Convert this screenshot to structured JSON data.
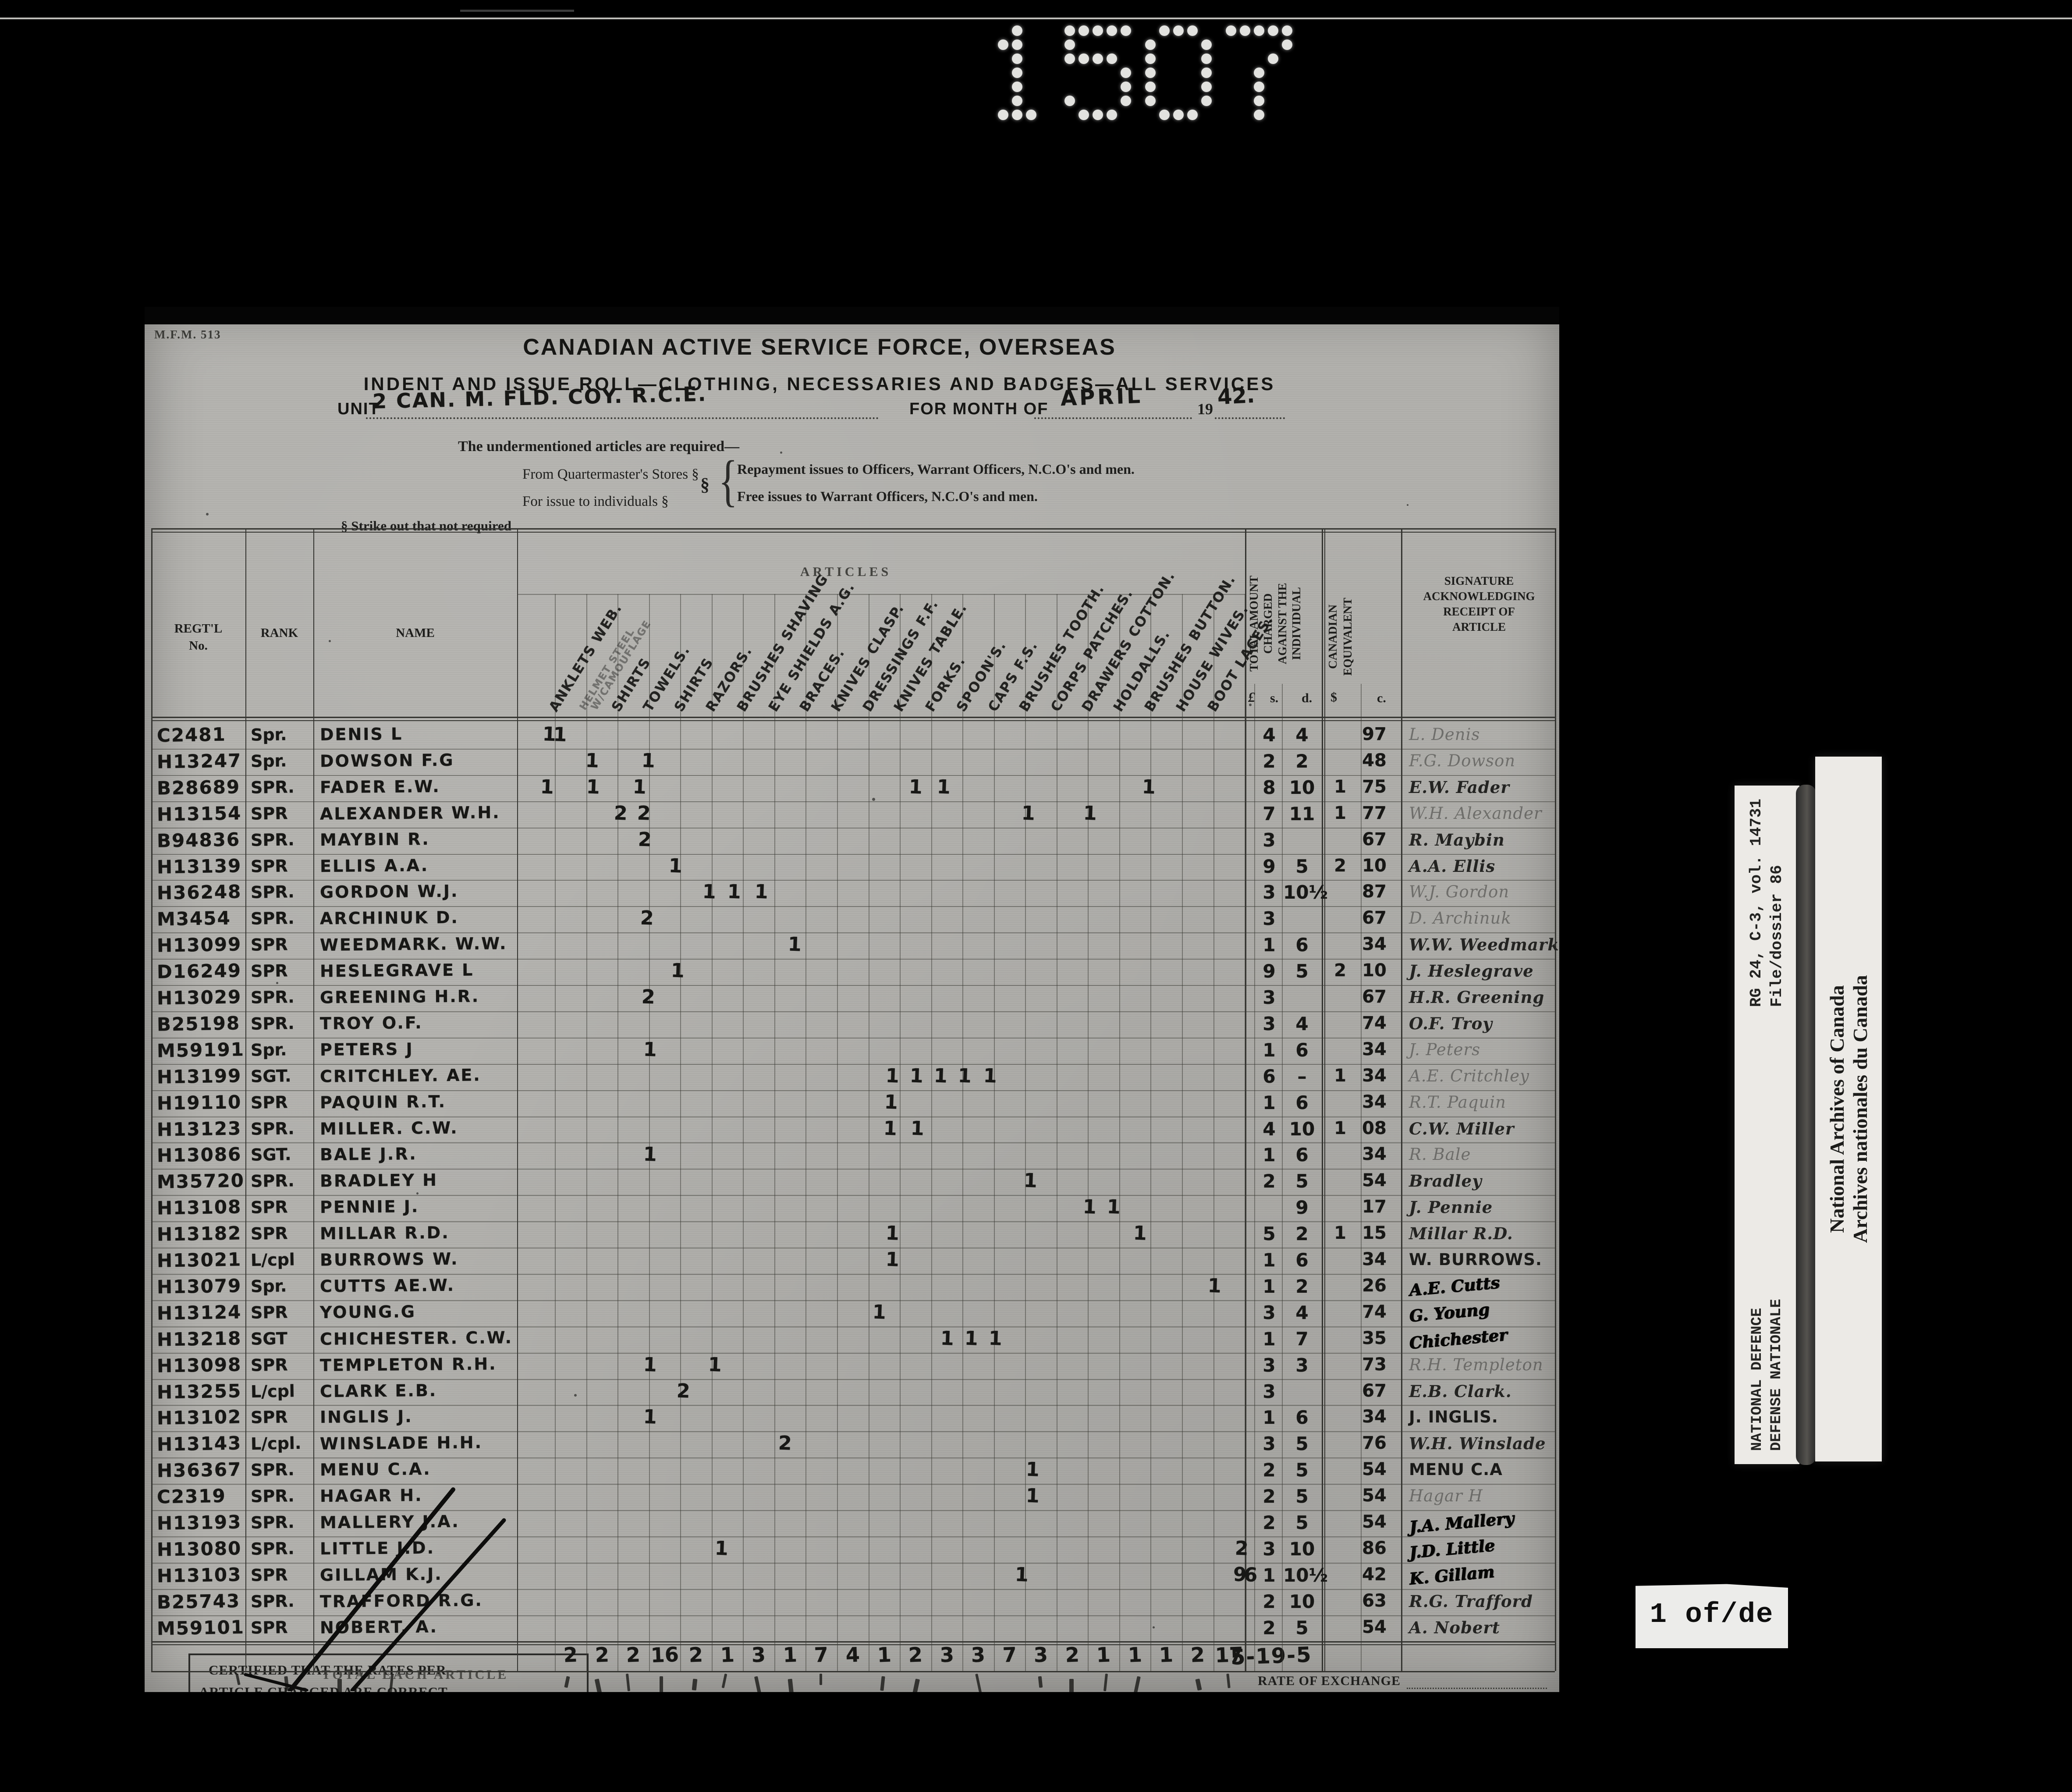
{
  "film_number": "1507",
  "stamp": "M.F.M. 513",
  "header": {
    "title": "CANADIAN ACTIVE SERVICE FORCE, OVERSEAS",
    "subtitle": "INDENT AND ISSUE ROLL—CLOTHING, NECESSARIES AND BADGES—ALL SERVICES",
    "unit_label": "UNIT",
    "unit_value": "2 CAN. M. FLD. COY. R.C.E.",
    "month_label": "FOR MONTH OF",
    "month_value": "APRIL",
    "year_printed": "19",
    "year_value": "42.",
    "required_line": "The undermentioned articles are required—",
    "from_stores": "From Quartermaster's Stores §",
    "for_issue": "For issue to individuals §",
    "strike_note": "§  Strike out that not required",
    "section_mark": "§",
    "brace": "{",
    "repayment_line": "Repayment issues to Officers, Warrant Officers, N.C.O's and men.",
    "free_line": "Free issues to Warrant Officers, N.C.O's and men."
  },
  "table": {
    "regtl_label": "REGT'L",
    "regtl_label2": "No.",
    "rank_label": "RANK",
    "name_label": "NAME",
    "articles_label": "ARTICLES",
    "article_columns": [
      {
        "t": "ANKLETS WEB."
      },
      {
        "t": "HELMET STEEL|W/CAMOUFLAGE",
        "f": 1
      },
      {
        "t": "SHIRTS"
      },
      {
        "t": "TOWELS."
      },
      {
        "t": "SHIRTS"
      },
      {
        "t": "RAZORS."
      },
      {
        "t": "BRUSHES SHAVING"
      },
      {
        "t": "EYE SHIELDS A.G."
      },
      {
        "t": "BRACES."
      },
      {
        "t": "KNIVES CLASP."
      },
      {
        "t": "DRESSINGS F.F."
      },
      {
        "t": "KNIVES TABLE."
      },
      {
        "t": "FORKS."
      },
      {
        "t": "SPOON'S."
      },
      {
        "t": "CAPS F.S."
      },
      {
        "t": "BRUSHES TOOTH."
      },
      {
        "t": "CORPS PATCHES."
      },
      {
        "t": "DRAWERS COTTON."
      },
      {
        "t": "HOLDALLS."
      },
      {
        "t": "BRUSHES BUTTON."
      },
      {
        "t": "HOUSE WIVES."
      },
      {
        "t": "BOOT LACES."
      }
    ],
    "total_amount_lines": [
      "TOTAL AMOUNT",
      "CHARGED",
      "AGAINST THE",
      "INDIVIDUAL"
    ],
    "canadian_lines": [
      "CANADIAN",
      "EQUIVALENT"
    ],
    "signature_lines": [
      "SIGNATURE",
      "ACKNOWLEDGING",
      "RECEIPT OF",
      "ARTICLE"
    ],
    "pound_label": "£",
    "s_label": "s.",
    "d_label": "d.",
    "dollar_label": "$",
    "c_label": "c."
  },
  "rows": [
    {
      "no": "C2481",
      "rank": "Spr.",
      "name": "DENIS L",
      "marks": [
        [
          1252,
          "11"
        ]
      ],
      "s": "4",
      "d": "4",
      "dol": "",
      "c": "97",
      "sig": "L. Denis",
      "style": "faint"
    },
    {
      "no": "H13247",
      "rank": "Spr.",
      "name": "DOWSON F.G",
      "marks": [
        [
          1350,
          "1"
        ],
        [
          1478,
          "1"
        ]
      ],
      "s": "2",
      "d": "2",
      "dol": "",
      "c": "48",
      "sig": "F.G. Dowson",
      "style": "faint"
    },
    {
      "no": "B28689",
      "rank": "SPR.",
      "name": "FADER E.W.",
      "marks": [
        [
          1247,
          "1"
        ],
        [
          1352,
          "1"
        ],
        [
          1458,
          "1"
        ],
        [
          2088,
          "1"
        ],
        [
          2152,
          "1"
        ],
        [
          2620,
          "1"
        ]
      ],
      "s": "8",
      "d": "10",
      "dol": "1",
      "c": "75",
      "sig": "E.W. Fader",
      "style": "norm"
    },
    {
      "no": "H13154",
      "rank": "SPR",
      "name": "ALEXANDER W.H.",
      "marks": [
        [
          1415,
          "2"
        ],
        [
          1468,
          "2"
        ],
        [
          2345,
          "1"
        ],
        [
          2486,
          "1"
        ]
      ],
      "s": "7",
      "d": "11",
      "dol": "1",
      "c": "77",
      "sig": "W.H. Alexander",
      "style": "faint"
    },
    {
      "no": "B94836",
      "rank": "SPR.",
      "name": "MAYBIN R.",
      "marks": [
        [
          1470,
          "2"
        ]
      ],
      "s": "3",
      "d": "",
      "dol": "",
      "c": "67",
      "sig": "R. Maybin",
      "style": "norm"
    },
    {
      "no": "H13139",
      "rank": "SPR",
      "name": "ELLIS A.A.",
      "marks": [
        [
          1540,
          "1"
        ]
      ],
      "s": "9",
      "d": "5",
      "dol": "2",
      "c": "10",
      "sig": "A.A. Ellis",
      "style": "norm"
    },
    {
      "no": "H36248",
      "rank": "SPR.",
      "name": "GORDON W.J.",
      "marks": [
        [
          1617,
          "1"
        ],
        [
          1674,
          "1"
        ],
        [
          1736,
          "1"
        ]
      ],
      "s": "3",
      "d": "10½",
      "dol": "",
      "c": "87",
      "sig": "W.J. Gordon",
      "style": "faint"
    },
    {
      "no": "M3454",
      "rank": "SPR.",
      "name": "ARCHINUK D.",
      "marks": [
        [
          1475,
          "2"
        ]
      ],
      "s": "3",
      "d": "",
      "dol": "",
      "c": "67",
      "sig": "D. Archinuk",
      "style": "faint"
    },
    {
      "no": "H13099",
      "rank": "SPR",
      "name": "WEEDMARK. W.W.",
      "marks": [
        [
          1812,
          "1"
        ]
      ],
      "s": "1",
      "d": "6",
      "dol": "",
      "c": "34",
      "sig": "W.W. Weedmark",
      "style": "norm"
    },
    {
      "no": "D16249",
      "rank": "SPR",
      "name": "HESLEGRAVE L",
      "marks": [
        [
          1545,
          "1"
        ]
      ],
      "s": "9",
      "d": "5",
      "dol": "2",
      "c": "10",
      "sig": "J. Heslegrave",
      "style": "norm"
    },
    {
      "no": "H13029",
      "rank": "SPR.",
      "name": "GREENING H.R.",
      "marks": [
        [
          1478,
          "2"
        ]
      ],
      "s": "3",
      "d": "",
      "dol": "",
      "c": "67",
      "sig": "H.R. Greening",
      "style": "norm"
    },
    {
      "no": "B25198",
      "rank": "SPR.",
      "name": "TROY O.F.",
      "marks": [],
      "s": "3",
      "d": "4",
      "dol": "",
      "c": "74",
      "sig": "O.F. Troy",
      "style": "norm"
    },
    {
      "no": "M59191",
      "rank": "Spr.",
      "name": "PETERS J",
      "marks": [
        [
          1482,
          "1"
        ]
      ],
      "s": "1",
      "d": "6",
      "dol": "",
      "c": "34",
      "sig": "J. Peters",
      "style": "faint"
    },
    {
      "no": "H13199",
      "rank": "SGT.",
      "name": "CRITCHLEY. AE.",
      "marks": [
        [
          2035,
          "1"
        ],
        [
          2090,
          "1"
        ],
        [
          2145,
          "1"
        ],
        [
          2200,
          "1"
        ],
        [
          2258,
          "1"
        ]
      ],
      "s": "6",
      "d": "–",
      "dol": "1",
      "c": "34",
      "sig": "A.E. Critchley",
      "style": "faint"
    },
    {
      "no": "H19110",
      "rank": "SPR",
      "name": "PAQUIN R.T.",
      "marks": [
        [
          2032,
          "1"
        ]
      ],
      "s": "1",
      "d": "6",
      "dol": "",
      "c": "34",
      "sig": "R.T. Paquin",
      "style": "faint"
    },
    {
      "no": "H13123",
      "rank": "SPR.",
      "name": "MILLER. C.W.",
      "marks": [
        [
          2030,
          "1"
        ],
        [
          2092,
          "1"
        ]
      ],
      "s": "4",
      "d": "10",
      "dol": "1",
      "c": "08",
      "sig": "C.W. Miller",
      "style": "norm"
    },
    {
      "no": "H13086",
      "rank": "SGT.",
      "name": "BALE J.R.",
      "marks": [
        [
          1482,
          "1"
        ]
      ],
      "s": "1",
      "d": "6",
      "dol": "",
      "c": "34",
      "sig": "R. Bale",
      "style": "faint"
    },
    {
      "no": "M35720",
      "rank": "SPR.",
      "name": "BRADLEY H",
      "marks": [
        [
          2350,
          "1"
        ]
      ],
      "s": "2",
      "d": "5",
      "dol": "",
      "c": "54",
      "sig": "Bradley",
      "style": "norm"
    },
    {
      "no": "H13108",
      "rank": "SPR",
      "name": "PENNIE J.",
      "marks": [
        [
          2485,
          "1"
        ],
        [
          2540,
          "1"
        ]
      ],
      "s": "",
      "d": "9",
      "dol": "",
      "c": "17",
      "sig": "J. Pennie",
      "style": "norm"
    },
    {
      "no": "H13182",
      "rank": "SPR",
      "name": "MILLAR R.D.",
      "marks": [
        [
          2035,
          "1"
        ],
        [
          2600,
          "1"
        ]
      ],
      "s": "5",
      "d": "2",
      "dol": "1",
      "c": "15",
      "sig": "Millar R.D.",
      "style": "norm"
    },
    {
      "no": "H13021",
      "rank": "L/cpl",
      "name": "BURROWS W.",
      "marks": [
        [
          2035,
          "1"
        ]
      ],
      "s": "1",
      "d": "6",
      "dol": "",
      "c": "34",
      "sig": "W. BURROWS.",
      "style": "print"
    },
    {
      "no": "H13079",
      "rank": "Spr.",
      "name": "CUTTS AE.W.",
      "marks": [
        [
          2770,
          "1"
        ]
      ],
      "s": "1",
      "d": "2",
      "dol": "",
      "c": "26",
      "sig": "A.E. Cutts",
      "style": "scrib"
    },
    {
      "no": "H13124",
      "rank": "SPR",
      "name": "YOUNG.G",
      "marks": [
        [
          2005,
          "1"
        ]
      ],
      "s": "3",
      "d": "4",
      "dol": "",
      "c": "74",
      "sig": "G. Young",
      "style": "scrib"
    },
    {
      "no": "H13218",
      "rank": "SGT",
      "name": "CHICHESTER. C.W.",
      "marks": [
        [
          2160,
          "1"
        ],
        [
          2215,
          "1"
        ],
        [
          2270,
          "1"
        ]
      ],
      "s": "1",
      "d": "7",
      "dol": "",
      "c": "35",
      "sig": "Chichester",
      "style": "scrib"
    },
    {
      "no": "H13098",
      "rank": "SPR",
      "name": "TEMPLETON R.H.",
      "marks": [
        [
          1482,
          "1"
        ],
        [
          1630,
          "1"
        ]
      ],
      "s": "3",
      "d": "3",
      "dol": "",
      "c": "73",
      "sig": "R.H. Templeton",
      "style": "faint"
    },
    {
      "no": "H13255",
      "rank": "L/cpl",
      "name": "CLARK E.B.",
      "marks": [
        [
          1558,
          "2"
        ]
      ],
      "s": "3",
      "d": "",
      "dol": "",
      "c": "67",
      "sig": "E.B. Clark.",
      "style": "norm"
    },
    {
      "no": "H13102",
      "rank": "SPR",
      "name": "INGLIS J.",
      "marks": [
        [
          1482,
          "1"
        ]
      ],
      "s": "1",
      "d": "6",
      "dol": "",
      "c": "34",
      "sig": "J. INGLIS.",
      "style": "print"
    },
    {
      "no": "H13143",
      "rank": "L/cpl.",
      "name": "WINSLADE H.H.",
      "marks": [
        [
          1790,
          "2"
        ]
      ],
      "s": "3",
      "d": "5",
      "dol": "",
      "c": "76",
      "sig": "W.H. Winslade",
      "style": "norm"
    },
    {
      "no": "H36367",
      "rank": "SPR.",
      "name": "MENU C.A.",
      "marks": [
        [
          2355,
          "1"
        ]
      ],
      "s": "2",
      "d": "5",
      "dol": "",
      "c": "54",
      "sig": "MENU C.A",
      "style": "print"
    },
    {
      "no": "C2319",
      "rank": "SPR.",
      "name": "HAGAR H.",
      "marks": [
        [
          2355,
          "1"
        ]
      ],
      "s": "2",
      "d": "5",
      "dol": "",
      "c": "54",
      "sig": "Hagar H",
      "style": "faint"
    },
    {
      "no": "H13193",
      "rank": "SPR.",
      "name": "MALLERY J.A.",
      "marks": [],
      "s": "2",
      "d": "5",
      "dol": "",
      "c": "54",
      "sig": "J.A. Mallery",
      "style": "scrib"
    },
    {
      "no": "H13080",
      "rank": "SPR.",
      "name": "LITTLE J.D.",
      "marks": [
        [
          1645,
          "1"
        ],
        [
          2832,
          "2"
        ]
      ],
      "s": "3",
      "d": "10",
      "dol": "",
      "c": "86",
      "sig": "J.D. Little",
      "style": "scrib"
    },
    {
      "no": "H13103",
      "rank": "SPR",
      "name": "GILLAM K.J.",
      "marks": [
        [
          2330,
          "1"
        ],
        [
          2828,
          "96"
        ]
      ],
      "s": "1",
      "d": "10½",
      "dol": "",
      "c": "42",
      "sig": "K. Gillam",
      "style": "scrib"
    },
    {
      "no": "B25743",
      "rank": "SPR.",
      "name": "TRAFFORD R.G.",
      "marks": [],
      "s": "2",
      "d": "10",
      "dol": "",
      "c": "63",
      "sig": "R.G. Trafford",
      "style": "norm"
    },
    {
      "no": "M59101",
      "rank": "SPR",
      "name": "NOBERT. A.",
      "marks": [],
      "s": "2",
      "d": "5",
      "dol": "",
      "c": "54",
      "sig": "A. Nobert",
      "style": "norm"
    }
  ],
  "totals": {
    "per_article": [
      "2",
      "2",
      "2",
      "16",
      "2",
      "1",
      "3",
      "1",
      "7",
      "4",
      "1",
      "2",
      "3",
      "3",
      "7",
      "3",
      "2",
      "1",
      "1",
      "1",
      "2",
      "17"
    ],
    "sterling": "5-19-5",
    "rate_label": "RATE OF EXCHANGE"
  },
  "cert": {
    "line1": "CERTIFIED THAT THE RATES PER",
    "overprint": "TOTAL EACH ARTICLE",
    "line2": "ARTICLE CHARGED ARE CORRECT"
  },
  "side": {
    "defence_line1": "NATIONAL DEFENCE",
    "defence_line2": "DEFENSE NATIONALE",
    "rg_line1": "RG 24, C-3, vol. 14731",
    "rg_line2": "File/dossier 86",
    "archives_en": "National Archives of Canada",
    "archives_fr": "Archives nationales du Canada",
    "page_label": "1 of/de"
  }
}
